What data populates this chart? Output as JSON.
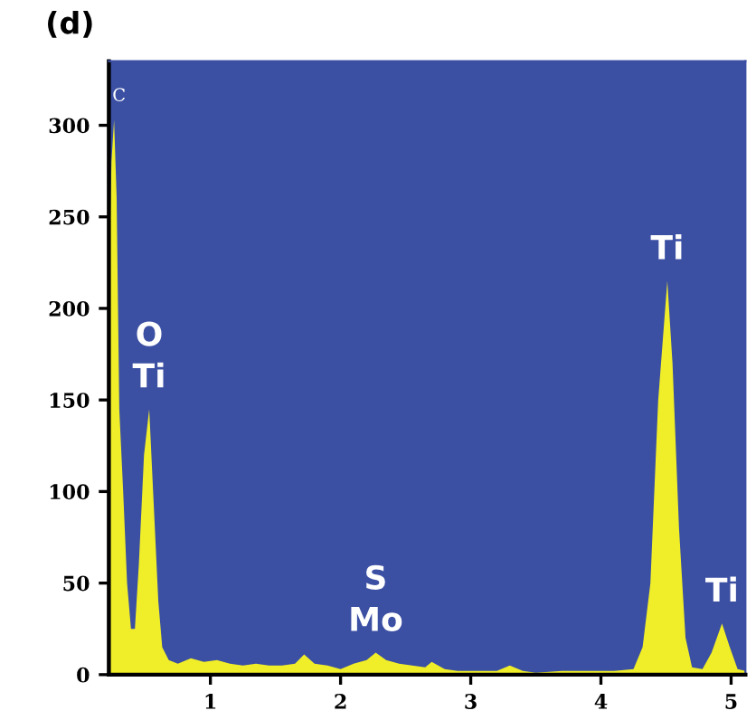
{
  "chart_data": {
    "type": "area",
    "title": "(d)",
    "x": [
      0.22,
      0.24,
      0.26,
      0.28,
      0.3,
      0.33,
      0.36,
      0.39,
      0.42,
      0.45,
      0.49,
      0.53,
      0.56,
      0.6,
      0.63,
      0.68,
      0.75,
      0.85,
      0.95,
      1.05,
      1.15,
      1.25,
      1.35,
      1.45,
      1.55,
      1.65,
      1.72,
      1.8,
      1.9,
      2.0,
      2.1,
      2.2,
      2.27,
      2.35,
      2.45,
      2.55,
      2.65,
      2.7,
      2.8,
      2.9,
      3.0,
      3.1,
      3.2,
      3.3,
      3.4,
      3.5,
      3.7,
      3.9,
      4.1,
      4.25,
      4.32,
      4.38,
      4.44,
      4.51,
      4.55,
      4.6,
      4.65,
      4.7,
      4.78,
      4.85,
      4.93,
      4.99,
      5.05,
      5.11
    ],
    "series": [
      {
        "color": "#f0ee28",
        "values": [
          210,
          280,
          303,
          260,
          145,
          100,
          50,
          25,
          25,
          60,
          120,
          145,
          100,
          40,
          15,
          8,
          6,
          9,
          7,
          8,
          6,
          5,
          6,
          5,
          5,
          6,
          11,
          6,
          5,
          3,
          6,
          8,
          12,
          8,
          6,
          5,
          4,
          7,
          3,
          2,
          2,
          2,
          2,
          5,
          2,
          1,
          2,
          2,
          2,
          3,
          15,
          50,
          150,
          215,
          170,
          80,
          20,
          4,
          3,
          12,
          28,
          15,
          3,
          2
        ]
      }
    ],
    "annotations": [
      {
        "text": "C",
        "x": 0.26,
        "y": 303
      },
      {
        "text": "O\nTi",
        "x": 0.53,
        "y": 145
      },
      {
        "text": "S\nMo",
        "x": 2.27,
        "y": 12
      },
      {
        "text": "Ti",
        "x": 4.51,
        "y": 215
      },
      {
        "text": "Ti",
        "x": 4.93,
        "y": 28
      }
    ],
    "xlim": [
      0.22,
      5.11
    ],
    "ylim": [
      0,
      335
    ],
    "xticks": [
      1,
      2,
      3,
      4,
      5
    ],
    "yticks": [
      0,
      50,
      100,
      150,
      200,
      250,
      300
    ],
    "grid": false,
    "legend": false
  }
}
